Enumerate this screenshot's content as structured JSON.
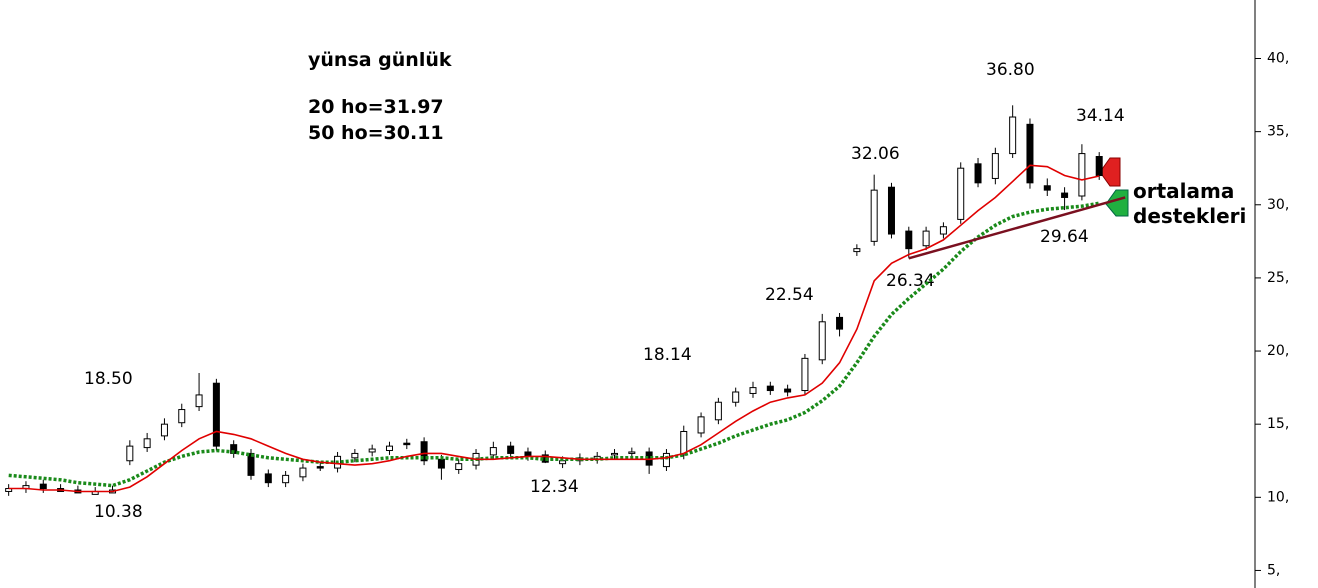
{
  "chart_data": {
    "type": "candlestick",
    "title": "yünsa günlük",
    "subtitle_lines": [
      "20 ho=31.97",
      "50 ho=30.11"
    ],
    "side_note": [
      "ortalama",
      "destekleri"
    ],
    "annotations": [
      "18.50",
      "10.38",
      "12.34",
      "18.14",
      "22.54",
      "32.06",
      "26.34",
      "36.80",
      "34.14",
      "29.64"
    ],
    "categories": [
      null,
      null,
      null,
      null,
      null,
      null,
      null,
      null,
      null,
      null,
      null,
      null,
      null,
      null,
      null,
      null,
      null,
      null,
      null,
      null,
      null,
      null,
      null,
      null,
      null,
      null,
      null,
      null,
      null,
      null,
      null,
      null,
      null,
      null,
      null,
      null,
      null,
      null,
      null,
      null,
      null,
      null,
      null,
      null,
      null,
      null,
      null,
      null,
      null,
      null,
      null,
      null,
      null,
      null,
      null,
      null,
      null,
      null,
      null,
      null,
      null,
      null,
      null,
      null
    ],
    "xlim": [
      -0.5,
      72
    ],
    "open": [
      10.4,
      10.6,
      10.9,
      10.6,
      10.5,
      10.2,
      10.3,
      12.5,
      13.4,
      14.2,
      15.1,
      16.2,
      17.8,
      13.6,
      13.0,
      11.6,
      11.0,
      11.4,
      12.1,
      12.0,
      12.7,
      13.1,
      13.2,
      13.7,
      13.8,
      12.6,
      11.9,
      12.2,
      12.9,
      13.5,
      13.1,
      12.9,
      12.3,
      12.5,
      12.6,
      12.9,
      13.0,
      13.1,
      12.1,
      12.9,
      14.4,
      15.3,
      16.5,
      17.1,
      17.6,
      17.4,
      17.3,
      19.4,
      22.3,
      26.8,
      27.5,
      31.2,
      28.2,
      27.2,
      28.0,
      29.0,
      32.8,
      31.8,
      33.5,
      35.5,
      31.3,
      30.8,
      30.6,
      33.3
    ],
    "high": [
      10.9,
      11.1,
      11.2,
      10.9,
      10.8,
      10.7,
      10.8,
      13.9,
      14.4,
      15.4,
      16.4,
      18.5,
      18.1,
      13.9,
      13.3,
      11.9,
      11.8,
      12.3,
      12.4,
      13.1,
      13.3,
      13.6,
      13.8,
      14.0,
      14.1,
      12.9,
      12.6,
      13.3,
      13.8,
      13.8,
      13.4,
      13.2,
      12.8,
      13.0,
      13.1,
      13.3,
      13.4,
      13.4,
      13.3,
      14.9,
      15.8,
      16.8,
      17.5,
      17.9,
      17.9,
      17.7,
      19.8,
      22.54,
      22.6,
      27.3,
      32.06,
      31.5,
      28.5,
      28.5,
      28.8,
      32.9,
      33.2,
      33.9,
      36.8,
      35.9,
      31.8,
      31.2,
      34.14,
      33.6
    ],
    "low": [
      10.1,
      10.3,
      10.3,
      10.45,
      10.4,
      10.38,
      10.4,
      12.2,
      13.1,
      13.9,
      14.8,
      15.9,
      13.2,
      12.7,
      11.2,
      10.7,
      10.7,
      11.1,
      11.8,
      11.7,
      12.4,
      12.8,
      12.9,
      13.3,
      12.2,
      11.2,
      11.6,
      11.9,
      12.6,
      12.7,
      12.5,
      12.34,
      12.0,
      12.2,
      12.3,
      12.6,
      12.7,
      11.6,
      11.8,
      12.6,
      14.1,
      15.0,
      16.2,
      16.8,
      17.0,
      16.9,
      17.0,
      19.1,
      21.0,
      26.5,
      27.2,
      27.7,
      26.34,
      26.9,
      27.7,
      28.7,
      31.2,
      31.4,
      33.2,
      31.1,
      30.6,
      29.64,
      30.3,
      31.7
    ],
    "close": [
      10.6,
      10.8,
      10.6,
      10.4,
      10.3,
      10.4,
      10.5,
      13.5,
      14.0,
      15.0,
      16.0,
      17.0,
      13.5,
      13.0,
      11.5,
      11.0,
      11.5,
      12.0,
      12.0,
      12.8,
      13.0,
      13.3,
      13.5,
      13.6,
      12.5,
      12.0,
      12.3,
      13.0,
      13.4,
      13.0,
      12.8,
      12.4,
      12.5,
      12.7,
      12.8,
      13.0,
      13.1,
      12.2,
      13.0,
      14.5,
      15.5,
      16.5,
      17.2,
      17.5,
      17.3,
      17.2,
      19.5,
      22.0,
      21.5,
      27.0,
      31.0,
      28.0,
      27.0,
      28.2,
      28.5,
      32.5,
      31.5,
      33.5,
      36.0,
      31.5,
      31.0,
      30.5,
      33.5,
      32.0
    ],
    "series": [
      {
        "name": "20 ho",
        "color": "#e00000",
        "values": [
          10.6,
          10.6,
          10.5,
          10.5,
          10.4,
          10.4,
          10.4,
          10.7,
          11.4,
          12.3,
          13.2,
          14.0,
          14.5,
          14.3,
          14.0,
          13.5,
          13.0,
          12.6,
          12.4,
          12.3,
          12.2,
          12.3,
          12.5,
          12.8,
          13.0,
          13.0,
          12.8,
          12.6,
          12.6,
          12.7,
          12.8,
          12.8,
          12.7,
          12.6,
          12.6,
          12.6,
          12.6,
          12.6,
          12.7,
          13.0,
          13.6,
          14.4,
          15.2,
          15.9,
          16.5,
          16.8,
          17.0,
          17.8,
          19.2,
          21.5,
          24.8,
          26.0,
          26.6,
          27.0,
          27.6,
          28.6,
          29.6,
          30.5,
          31.6,
          32.7,
          32.6,
          32.0,
          31.7,
          31.97
        ]
      },
      {
        "name": "50 ho",
        "color": "#1a8a1a",
        "values": [
          11.5,
          11.4,
          11.3,
          11.2,
          11.0,
          10.9,
          10.8,
          11.2,
          11.8,
          12.4,
          12.8,
          13.1,
          13.2,
          13.1,
          12.9,
          12.7,
          12.6,
          12.5,
          12.4,
          12.4,
          12.5,
          12.6,
          12.7,
          12.7,
          12.7,
          12.7,
          12.6,
          12.6,
          12.7,
          12.7,
          12.7,
          12.6,
          12.6,
          12.6,
          12.6,
          12.7,
          12.7,
          12.7,
          12.7,
          12.9,
          13.3,
          13.7,
          14.2,
          14.6,
          15.0,
          15.3,
          15.8,
          16.6,
          17.6,
          19.2,
          21.0,
          22.5,
          23.6,
          24.6,
          25.6,
          26.8,
          27.8,
          28.6,
          29.2,
          29.5,
          29.7,
          29.8,
          29.9,
          30.11
        ]
      }
    ],
    "trendline": {
      "color": "#7a1020",
      "x": [
        52,
        64.5
      ],
      "y": [
        26.34,
        30.5
      ]
    },
    "ylim": [
      3.8,
      44
    ],
    "yticks": [
      {
        "value": 5,
        "label": "5,"
      },
      {
        "value": 10,
        "label": "10,"
      },
      {
        "value": 15,
        "label": "15,"
      },
      {
        "value": 20,
        "label": "20,"
      },
      {
        "value": 25,
        "label": "25,"
      },
      {
        "value": 30,
        "label": "30,"
      },
      {
        "value": 35,
        "label": "35,"
      },
      {
        "value": 40,
        "label": "40,"
      }
    ]
  }
}
